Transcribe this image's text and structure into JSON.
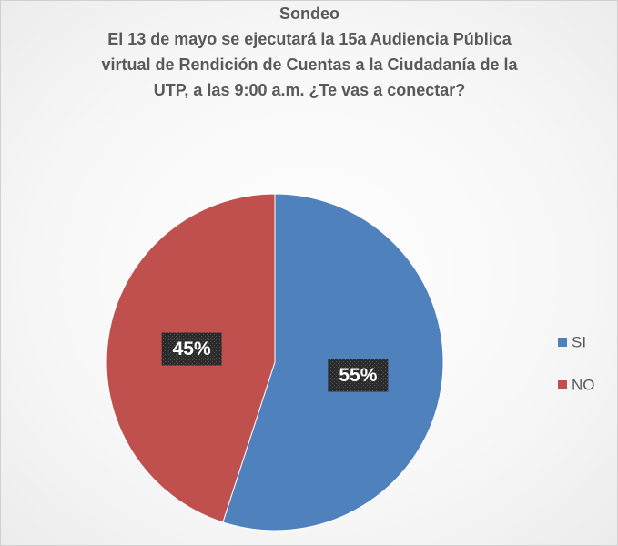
{
  "chart_data": {
    "type": "pie",
    "title": "Sondeo",
    "subtitle": [
      "El 13 de mayo se ejecutará la 15a Audiencia Pública",
      "virtual de Rendición de Cuentas a la Ciudadanía de la",
      "UTP, a las 9:00 a.m. ¿Te vas a conectar?"
    ],
    "categories": [
      "SI",
      "NO"
    ],
    "values": [
      55,
      45
    ],
    "value_labels": [
      "55%",
      "45%"
    ],
    "colors": [
      "#4f81bd",
      "#c0504d"
    ],
    "legend": "right"
  }
}
